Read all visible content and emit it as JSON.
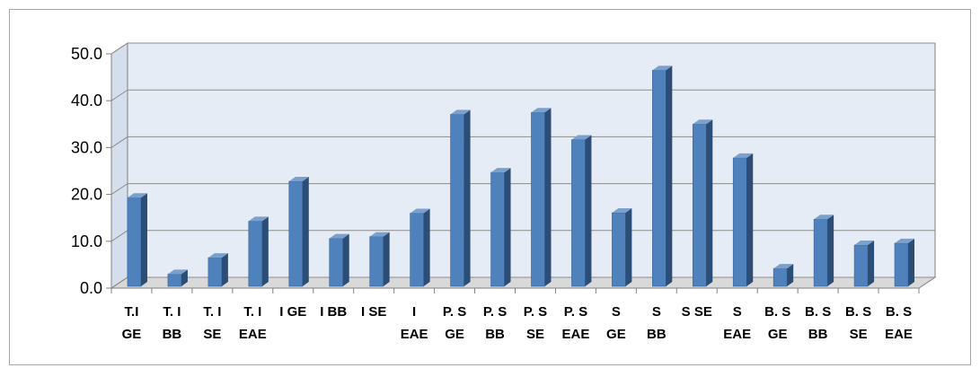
{
  "chart_data": {
    "type": "bar",
    "style": "3d-column",
    "categories": [
      [
        "T.I",
        "GE"
      ],
      [
        "T. I",
        "BB"
      ],
      [
        "T. I",
        "SE"
      ],
      [
        "T. I",
        "EAE"
      ],
      [
        "I GE"
      ],
      [
        "I BB"
      ],
      [
        "I SE"
      ],
      [
        "I",
        "EAE"
      ],
      [
        "P. S",
        "GE"
      ],
      [
        "P. S",
        "BB"
      ],
      [
        "P. S",
        "SE"
      ],
      [
        "P. S",
        "EAE"
      ],
      [
        "S",
        "GE"
      ],
      [
        "S",
        "BB"
      ],
      [
        "S SE"
      ],
      [
        "S",
        "EAE"
      ],
      [
        "B. S",
        "GE"
      ],
      [
        "B. S",
        "BB"
      ],
      [
        "B. S",
        "SE"
      ],
      [
        "B. S",
        "EAE"
      ]
    ],
    "values": [
      19.3,
      3.0,
      6.5,
      14.3,
      22.8,
      10.6,
      11.0,
      16.0,
      37.1,
      24.7,
      37.5,
      31.7,
      16.1,
      46.5,
      35.0,
      27.8,
      4.2,
      14.7,
      9.2,
      9.6
    ],
    "ylim": [
      0,
      50
    ],
    "yticks": [
      "0.0",
      "10.0",
      "20.0",
      "30.0",
      "40.0",
      "50.0"
    ],
    "title": "",
    "xlabel": "",
    "ylabel": "",
    "grid": true,
    "legend": "none",
    "colors": {
      "bar_front": "#4f81bd",
      "bar_side": "#2c4d75",
      "bar_top": "#7ba0cd",
      "wall": "#e6ecf6",
      "floor": "#d9d9d9",
      "gridline": "#8c8c8c",
      "axis": "#808080"
    }
  }
}
